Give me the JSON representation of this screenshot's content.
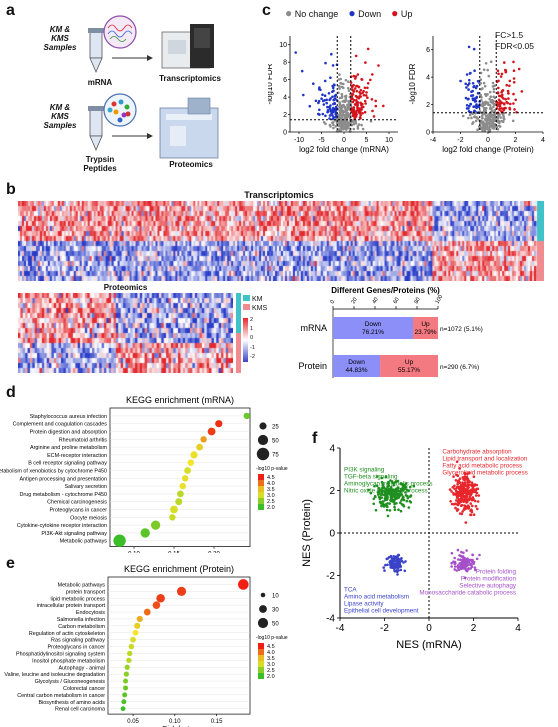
{
  "panels": {
    "a": "a",
    "b": "b",
    "c": "c",
    "d": "d",
    "e": "e",
    "f": "f"
  },
  "panel_a": {
    "top_sample": "KM & KMS Samples",
    "top_molecule": "mRNA",
    "top_method": "Transcriptomics",
    "bottom_sample": "KM & KMS Samples",
    "bottom_molecule": "Trypsin Peptides",
    "bottom_method": "Proteomics"
  },
  "panel_c": {
    "legend": [
      {
        "label": "No change",
        "color": "#8c8c8c"
      },
      {
        "label": "Down",
        "color": "#1f34c8"
      },
      {
        "label": "Up",
        "color": "#d3141d"
      }
    ],
    "annotation_lines": [
      "FC>1.5",
      "FDR<0.05"
    ],
    "left_xlabel": "log2 fold change (mRNA)",
    "right_xlabel": "log2 fold change (Protein)",
    "ylabel": "-log10 FDR",
    "left_yticks": [
      "10",
      "8",
      "6",
      "4",
      "2",
      "0"
    ],
    "left_xticks": [
      "-10",
      "-5",
      "0",
      "5",
      "10"
    ],
    "right_yticks": [
      "6",
      "4",
      "2",
      "0"
    ],
    "right_xticks": [
      "-4",
      "-2",
      "0",
      "2",
      "4"
    ]
  },
  "panel_b": {
    "heatmap1_title": "Transcriptomics",
    "heatmap2_title": "Proteomics",
    "group_legend": [
      {
        "label": "KM",
        "color": "#3fc3c9"
      },
      {
        "label": "KMS",
        "color": "#f08b8f"
      }
    ],
    "scale_ticks": [
      "2",
      "1",
      "0",
      "-1",
      "-2"
    ],
    "bar_title": "Different Genes/Proteins (%)",
    "bar_axis_ticks": [
      "0",
      "20",
      "40",
      "60",
      "80",
      "100"
    ]
  },
  "panel_d": {
    "title": "KEGG enrichment (mRNA)",
    "xlabel": "Rich factor",
    "size_legend": [
      "25",
      "50",
      "75"
    ],
    "color_legend_title": "-log10 p-value",
    "color_legend": [
      "4.5",
      "4.0",
      "3.5",
      "3.0",
      "2.5",
      "2.0"
    ]
  },
  "panel_e": {
    "title": "KEGG enrichment (Protein)",
    "xlabel": "Rich factor",
    "size_legend": [
      "10",
      "30",
      "50"
    ],
    "color_legend_title": "-log10 p-value",
    "color_legend": [
      "4.5",
      "4.0",
      "3.5",
      "3.0",
      "2.5",
      "2.0"
    ]
  },
  "panel_f": {
    "xlabel": "NES (mRNA)",
    "ylabel": "NES (Protein)",
    "q2_terms": [
      "PI3K signaling",
      "TGF-beta signaling",
      "Aminoglycan metabolic process",
      "Nitric oxide metabolic process"
    ],
    "q1_terms": [
      "Carbohydrate absorption",
      "Lipid transport and localization",
      "Fatty acid metabolic process",
      "Glycerolipid metabolic process"
    ],
    "q3_terms": [
      "TCA",
      "Amino acid metabolism",
      "Lipase activity",
      "Epithelial cell development"
    ],
    "q4_terms": [
      "Protein folding",
      "Protein modification",
      "Selective autophagy",
      "Monosaccharide catabolic process"
    ],
    "colors": {
      "q1": "#e8262c",
      "q2": "#1f8f1f",
      "q3": "#3a43c9",
      "q4": "#a64fc9"
    }
  },
  "chart_data": [
    {
      "type": "bar",
      "title": "Different Genes/Proteins (%)",
      "categories": [
        "mRNA",
        "Protein"
      ],
      "series": [
        {
          "name": "Down",
          "values": [
            76.21,
            44.83
          ],
          "color": "#8b8ff7"
        },
        {
          "name": "Up",
          "values": [
            23.79,
            55.17
          ],
          "color": "#f27a80"
        }
      ],
      "labels": [
        "Down 76.21%",
        "Up 23.79%",
        "Down 44.83%",
        "Up 55.17%"
      ],
      "counts": [
        "n=1072 (5.1%)",
        "n=290 (6.7%)"
      ],
      "xlim": [
        0,
        100
      ]
    },
    {
      "type": "scatter",
      "title": "KEGG enrichment (mRNA)",
      "xlabel": "Rich factor",
      "xticks": [
        "0.10",
        "0.15",
        "0.20"
      ],
      "xlim": [
        0.07,
        0.245
      ],
      "categories": [
        "Staphylococcus aureus infection",
        "Complement and coagulation cascades",
        "Protein digestion and absorption",
        "Rheumatoid arthritis",
        "Arginine and proline metabolism",
        "ECM-receptor interaction",
        "B cell receptor signaling pathway",
        "Metabolism of xenobiotics by cytochrome P450",
        "Antigen processing and presentation",
        "Salivary secretion",
        "Drug metabolism - cytochrome P450",
        "Chemical carcinogenesis",
        "Proteoglycans in cancer",
        "Oocyte meiosis",
        "Cytokine-cytokine receptor interaction",
        "PI3K-Akt signaling pathway",
        "Metabolic pathways"
      ],
      "x": [
        0.241,
        0.206,
        0.197,
        0.187,
        0.182,
        0.175,
        0.171,
        0.167,
        0.164,
        0.161,
        0.158,
        0.156,
        0.15,
        0.148,
        0.127,
        0.114,
        0.082
      ],
      "size": [
        20,
        25,
        30,
        20,
        22,
        25,
        20,
        22,
        20,
        20,
        22,
        24,
        30,
        20,
        40,
        42,
        75
      ],
      "neglog10p": [
        2.3,
        4.4,
        4.3,
        3.7,
        3.4,
        3.1,
        3.2,
        3.0,
        3.3,
        3.1,
        2.8,
        2.8,
        3.0,
        2.9,
        2.4,
        2.2,
        2.0
      ]
    },
    {
      "type": "scatter",
      "title": "KEGG enrichment (Protein)",
      "xlabel": "Rich factor",
      "xticks": [
        "0.05",
        "0.10",
        "0.15"
      ],
      "xlim": [
        0.02,
        0.19
      ],
      "categories": [
        "Metabolic pathways",
        "protein transport",
        "lipid metabolic process",
        "intracellular protein transport",
        "Endocytosis",
        "Salmonella infection",
        "Carbon metabolism",
        "Regulation of actin cytoskeleton",
        "Ras signaling pathway",
        "Proteoglycans in cancer",
        "Phosphatidylinositol signaling system",
        "Inositol phosphate metabolism",
        "Autophagy - animal",
        "Valine, leucine and isoleucine degradation",
        "Glycolysis / Gluconeogenesis",
        "Colorectal cancer",
        "Central carbon metabolism in cancer",
        "Biosynthesis of amino acids",
        "Renal cell carcinoma"
      ],
      "x": [
        0.182,
        0.108,
        0.083,
        0.078,
        0.067,
        0.058,
        0.055,
        0.053,
        0.05,
        0.048,
        0.046,
        0.045,
        0.043,
        0.042,
        0.041,
        0.041,
        0.04,
        0.039,
        0.038
      ],
      "size": [
        55,
        40,
        35,
        28,
        22,
        18,
        18,
        16,
        16,
        15,
        14,
        14,
        13,
        13,
        12,
        12,
        12,
        12,
        11
      ],
      "neglog10p": [
        4.5,
        4.3,
        4.3,
        4.2,
        4.0,
        3.6,
        3.4,
        3.2,
        3.0,
        2.9,
        2.8,
        2.8,
        2.6,
        2.5,
        2.4,
        2.3,
        2.2,
        2.1,
        2.0
      ]
    },
    {
      "type": "scatter",
      "title": "",
      "xlabel": "NES (mRNA)",
      "ylabel": "NES (Protein)",
      "xlim": [
        -4,
        4
      ],
      "ylim": [
        -4,
        4
      ],
      "xticks": [
        "-4",
        "-2",
        "0",
        "2",
        "4"
      ],
      "yticks": [
        "-4",
        "-2",
        "0",
        "2",
        "4"
      ],
      "series": [
        {
          "name": "Q1",
          "center": [
            1.6,
            1.9
          ],
          "spread": [
            0.45,
            0.8
          ],
          "color": "#e8262c"
        },
        {
          "name": "Q2",
          "center": [
            -1.7,
            1.8
          ],
          "spread": [
            0.7,
            0.5
          ],
          "color": "#1f8f1f"
        },
        {
          "name": "Q3",
          "center": [
            -1.5,
            -1.4
          ],
          "spread": [
            0.35,
            0.35
          ],
          "color": "#3a43c9"
        },
        {
          "name": "Q4",
          "center": [
            1.6,
            -1.4
          ],
          "spread": [
            0.45,
            0.35
          ],
          "color": "#a64fc9"
        }
      ]
    }
  ]
}
